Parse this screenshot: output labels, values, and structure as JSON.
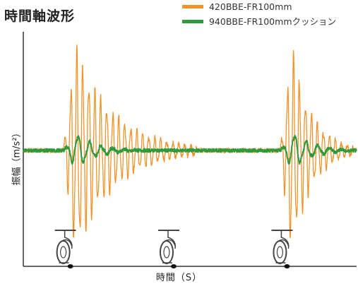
{
  "chart_data": {
    "type": "line",
    "title": "時間軸波形",
    "xlabel": "時間（S）",
    "ylabel": "振幅（m/s²）",
    "legend_placement": "top-right",
    "grid": false,
    "x_ticks": [],
    "y_ticks": [],
    "colors": {
      "orange": "#f0932b",
      "green": "#2e9a3e",
      "axis": "#333333",
      "caster": "#444444"
    },
    "series": [
      {
        "name": "420BBE-FR100mm",
        "color": "#f0932b",
        "bursts": [
          {
            "start": 0.12,
            "peak_time": 0.155,
            "peak_amplitude": 1.0,
            "decay_end": 0.52,
            "period": 0.018
          },
          {
            "start": 0.77,
            "peak_time": 0.805,
            "peak_amplitude": 1.0,
            "decay_end": 0.99,
            "period": 0.018
          }
        ],
        "noise_level": 0.02
      },
      {
        "name": "940BBE-FR100mmクッション",
        "color": "#2e9a3e",
        "bursts": [
          {
            "start": 0.12,
            "peak_time": 0.16,
            "peak_amplitude": 0.17,
            "decay_end": 0.34,
            "period": 0.035
          },
          {
            "start": 0.77,
            "peak_time": 0.81,
            "peak_amplitude": 0.17,
            "decay_end": 0.99,
            "period": 0.035
          }
        ],
        "noise_level": 0.015
      }
    ],
    "markers": [
      {
        "label": "caster-icon",
        "x": 0.12
      },
      {
        "label": "caster-icon",
        "x": 0.43
      },
      {
        "label": "caster-icon",
        "x": 0.77
      }
    ]
  }
}
